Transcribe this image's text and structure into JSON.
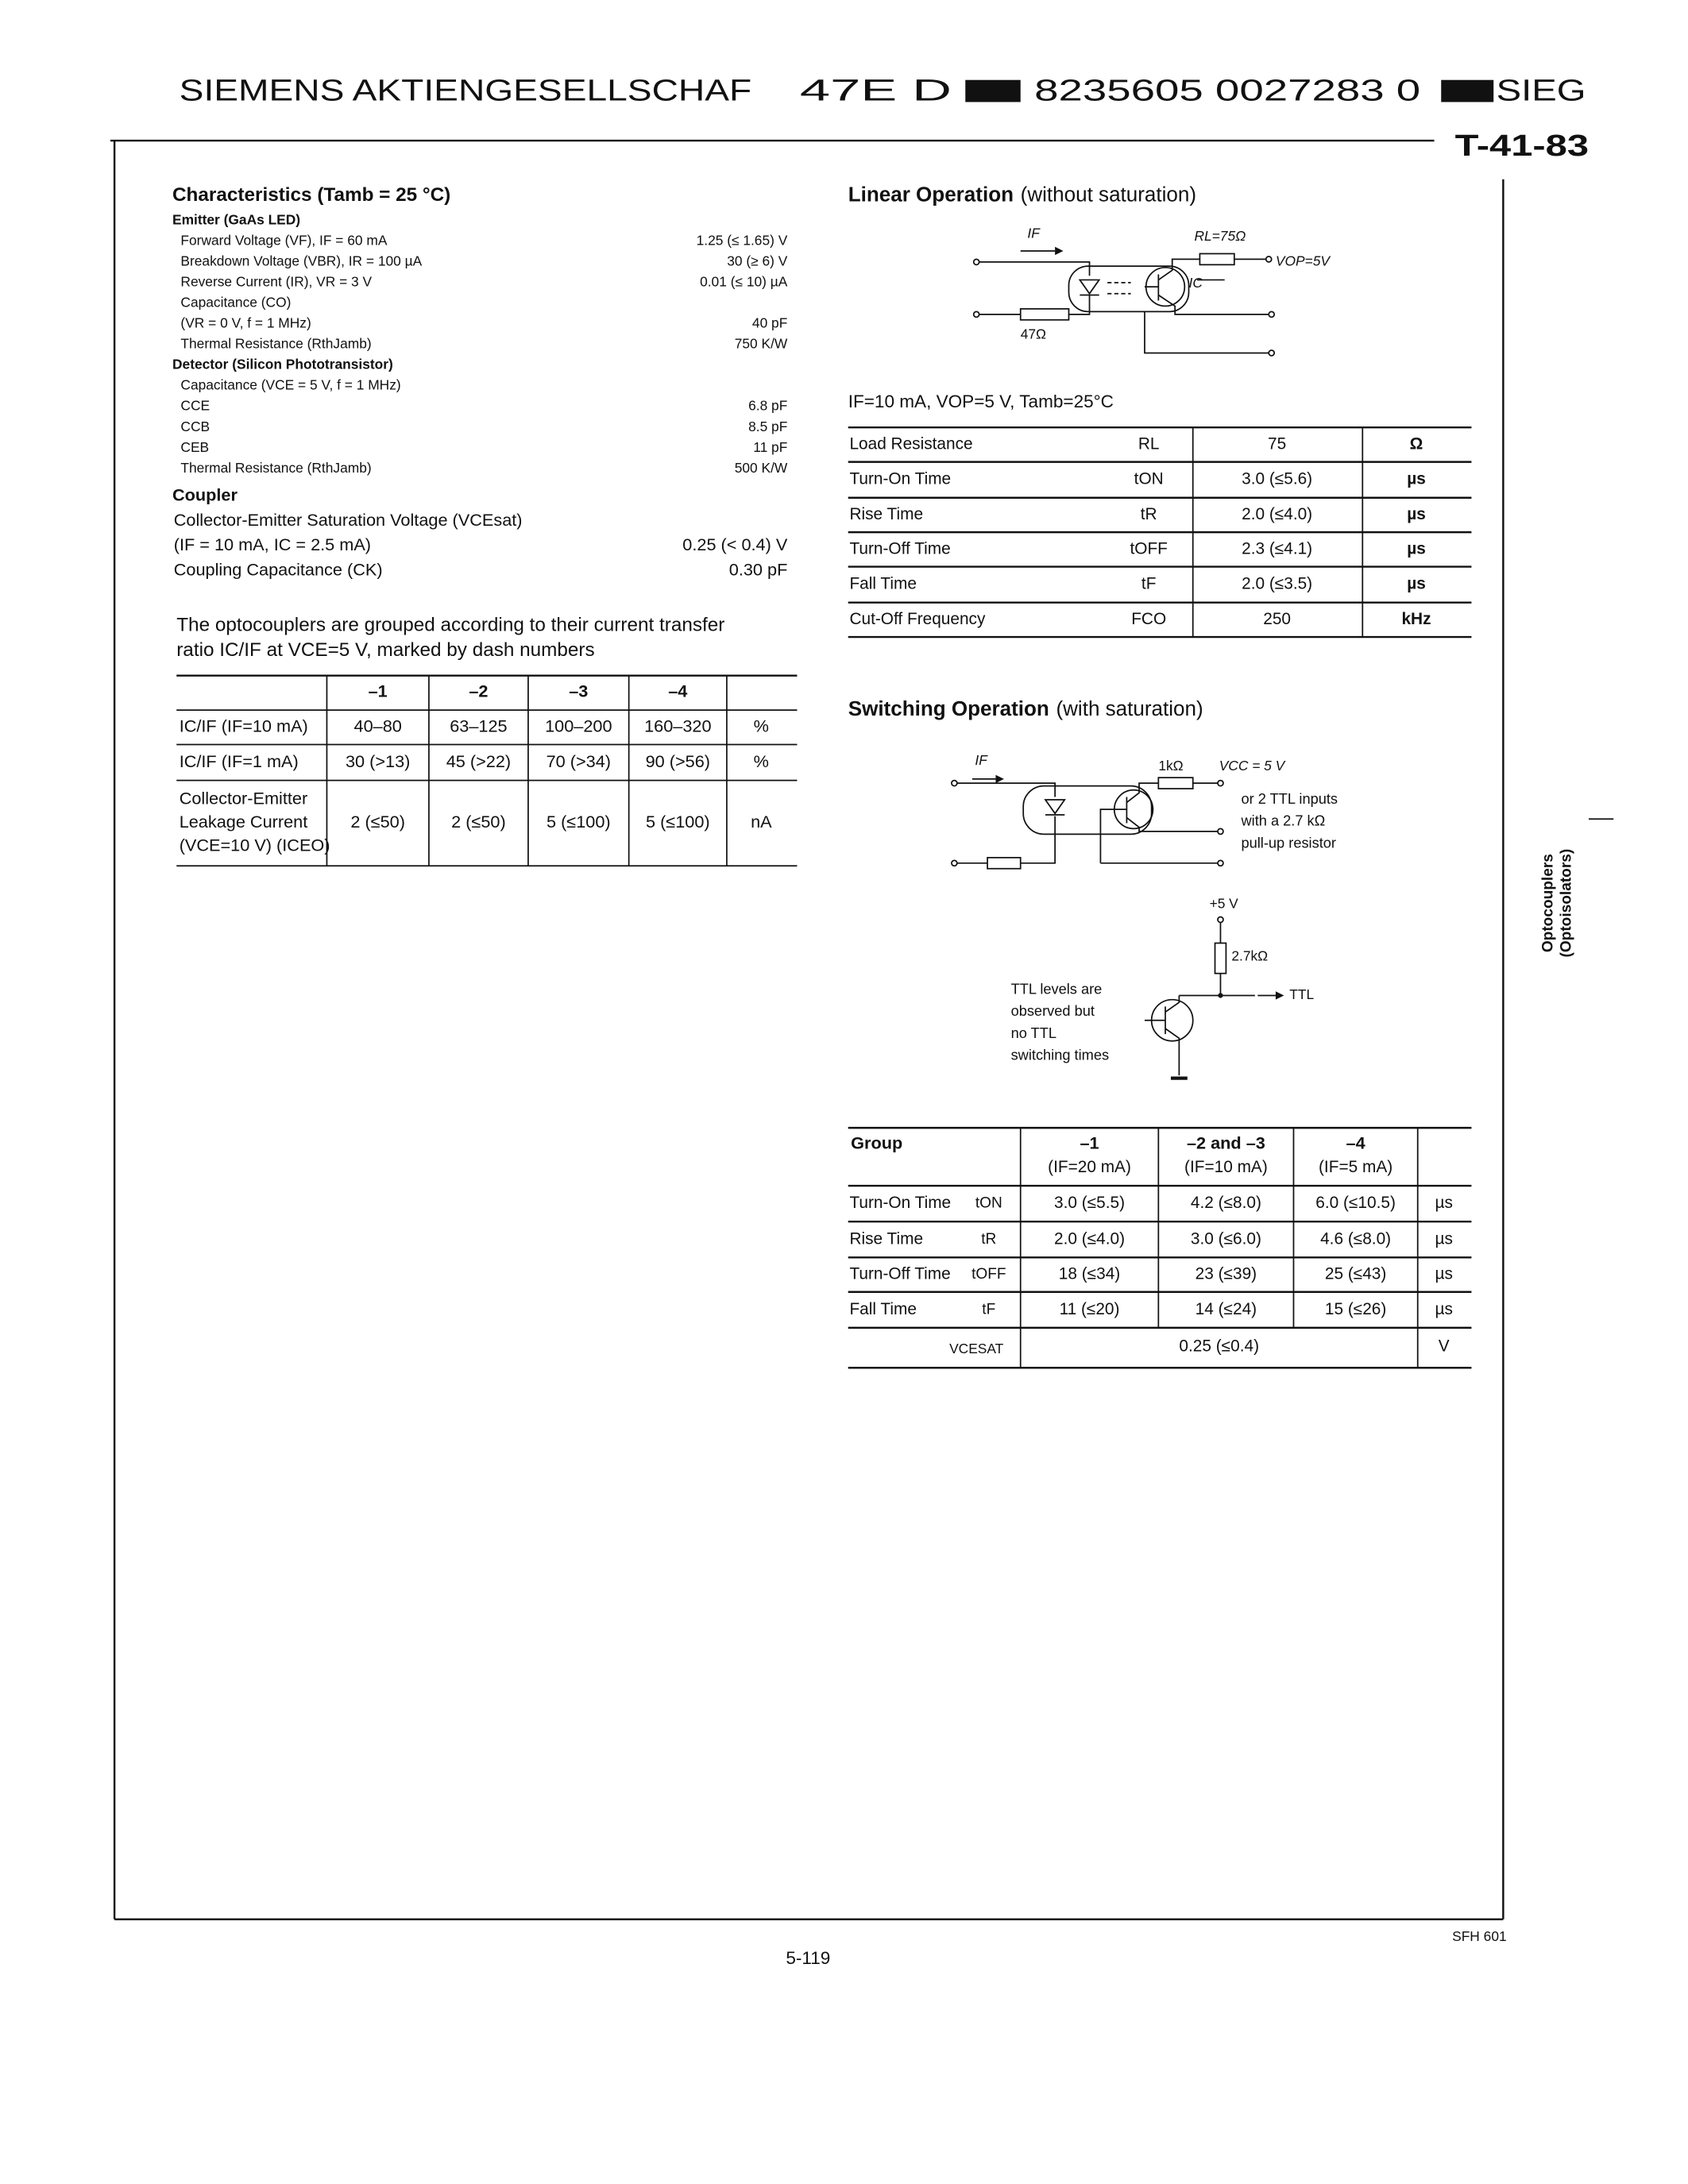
{
  "header": {
    "company": "SIEMENS AKTIENGESELLSCHAF",
    "code": "47E D",
    "serial": "8235605 0027283 0",
    "brand": "SIEG",
    "ref": "T-41-83"
  },
  "characteristics": {
    "title": "Characteristics (Tamb = 25 °C)",
    "sections": [
      {
        "heading": "Emitter (GaAs LED)",
        "rows": [
          {
            "label": "Forward Voltage (VF), IF = 60 mA",
            "value": "1.25 (≤ 1.65) V"
          },
          {
            "label": "Breakdown Voltage (VBR), IR = 100 µA",
            "value": "30 (≥ 6) V"
          },
          {
            "label": "Reverse Current (IR), VR = 3 V",
            "value": "0.01 (≤ 10) µA"
          },
          {
            "label": "Capacitance (CO)"
          },
          {
            "label": "(VR = 0 V, f = 1 MHz)",
            "value": "40 pF"
          },
          {
            "label": "Thermal Resistance (RthJamb)",
            "value": "750 K/W"
          }
        ]
      },
      {
        "heading": "Detector (Silicon Phototransistor)",
        "rows": [
          {
            "label": "Capacitance (VCE = 5 V, f = 1 MHz)"
          },
          {
            "label": "CCE",
            "value": "6.8 pF"
          },
          {
            "label": "CCB",
            "value": "8.5 pF"
          },
          {
            "label": "CEB",
            "value": "11 pF"
          },
          {
            "label": "Thermal Resistance (RthJamb)",
            "value": "500 K/W"
          }
        ]
      },
      {
        "heading": "Coupler",
        "rows": [
          {
            "label": "Collector-Emitter Saturation Voltage (VCEsat)"
          },
          {
            "label": "(IF = 10 mA, IC = 2.5 mA)",
            "value": "0.25 (< 0.4) V"
          },
          {
            "label": "Coupling Capacitance (CK)",
            "value": "0.30 pF"
          }
        ]
      }
    ]
  },
  "grouping": {
    "text": [
      "The optocouplers are grouped according to their current transfer",
      "ratio IC/IF at VCE=5 V, marked by dash numbers"
    ],
    "columns": [
      "–1",
      "–2",
      "–3",
      "–4"
    ],
    "rows": [
      {
        "label": [
          "IC/IF (IF=10 mA)"
        ],
        "cells": [
          "40–80",
          "63–125",
          "100–200",
          "160–320"
        ],
        "unit": "%"
      },
      {
        "label": [
          "IC/IF (IF=1 mA)"
        ],
        "cells": [
          "30 (>13)",
          "45 (>22)",
          "70 (>34)",
          "90 (>56)"
        ],
        "unit": "%"
      },
      {
        "label": [
          "Collector-Emitter",
          "Leakage Current",
          "(VCE=10 V) (ICEO)"
        ],
        "cells": [
          "2 (≤50)",
          "2 (≤50)",
          "5 (≤100)",
          "5 (≤100)"
        ],
        "unit": "nA"
      }
    ]
  },
  "linear": {
    "title": "Linear Operation",
    "subtitle": "(without saturation)",
    "circuit": {
      "if": "IF",
      "rl": "RL=75Ω",
      "vop": "VOP=5V",
      "ic": "IC",
      "r_in": "47Ω"
    },
    "conditions": "IF=10 mA, VOP=5 V, Tamb=25°C",
    "rows": [
      [
        "Load Resistance",
        "RL",
        "75",
        "Ω"
      ],
      [
        "Turn-On Time",
        "tON",
        "3.0 (≤5.6)",
        "µs"
      ],
      [
        "Rise Time",
        "tR",
        "2.0 (≤4.0)",
        "µs"
      ],
      [
        "Turn-Off Time",
        "tOFF",
        "2.3 (≤4.1)",
        "µs"
      ],
      [
        "Fall Time",
        "tF",
        "2.0 (≤3.5)",
        "µs"
      ],
      [
        "Cut-Off Frequency",
        "FCO",
        "250",
        "kHz"
      ]
    ]
  },
  "switching": {
    "title": "Switching Operation",
    "subtitle": "(with saturation)",
    "circuit": {
      "if": "IF",
      "r": "1kΩ",
      "vcc": "VCC = 5 V",
      "note": [
        "or 2 TTL inputs",
        "with a 2.7 kΩ",
        "pull-up resistor"
      ],
      "supply": "+5 V",
      "pullup": "2.7kΩ",
      "ttl": "TTL",
      "remark": [
        "TTL levels are",
        "observed but",
        "no TTL",
        "switching times"
      ]
    },
    "table": {
      "group": "Group",
      "columns": [
        {
          "name": "–1",
          "condition": "(IF=20 mA)"
        },
        {
          "name": "–2 and –3",
          "condition": "(IF=10 mA)"
        },
        {
          "name": "–4",
          "condition": "(IF=5 mA)"
        }
      ],
      "rows": [
        {
          "name": "Turn-On Time",
          "symbol": "tON",
          "values": [
            "3.0 (≤5.5)",
            "4.2 (≤8.0)",
            "6.0 (≤10.5)"
          ],
          "unit": "µs"
        },
        {
          "name": "Rise Time",
          "symbol": "tR",
          "values": [
            "2.0 (≤4.0)",
            "3.0 (≤6.0)",
            "4.6 (≤8.0)"
          ],
          "unit": "µs"
        },
        {
          "name": "Turn-Off Time",
          "symbol": "tOFF",
          "values": [
            "18 (≤34)",
            "23 (≤39)",
            "25 (≤43)"
          ],
          "unit": "µs"
        },
        {
          "name": "Fall Time",
          "symbol": "tF",
          "values": [
            "11 (≤20)",
            "14 (≤24)",
            "15 (≤26)"
          ],
          "unit": "µs"
        }
      ],
      "sat": {
        "symbol": "VCESAT",
        "value": "0.25 (≤0.4)",
        "unit": "V"
      }
    }
  },
  "side_label": [
    "Optocouplers",
    "(Optoisolators)"
  ],
  "footer": {
    "part": "SFH 601",
    "page": "5-119"
  }
}
